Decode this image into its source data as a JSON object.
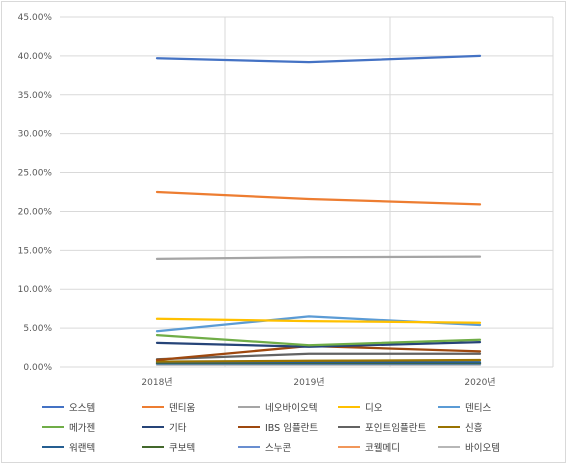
{
  "chart_data": {
    "type": "line",
    "categories": [
      "2018년",
      "2019년",
      "2020년"
    ],
    "ylim": [
      0,
      45
    ],
    "yticks": [
      "0.00%",
      "5.00%",
      "10.00%",
      "15.00%",
      "20.00%",
      "25.00%",
      "30.00%",
      "35.00%",
      "40.00%",
      "45.00%"
    ],
    "grid": true,
    "legend_position": "bottom",
    "series": [
      {
        "name": "오스템",
        "color": "#4472C4",
        "values": [
          39.7,
          39.2,
          40.0
        ]
      },
      {
        "name": "덴티움",
        "color": "#ED7D31",
        "values": [
          22.5,
          21.6,
          20.9
        ]
      },
      {
        "name": "네오바이오텍",
        "color": "#A5A5A5",
        "values": [
          13.9,
          14.1,
          14.2
        ]
      },
      {
        "name": "디오",
        "color": "#FFC000",
        "values": [
          6.2,
          5.9,
          5.7
        ]
      },
      {
        "name": "덴티스",
        "color": "#5B9BD5",
        "values": [
          4.6,
          6.5,
          5.4
        ]
      },
      {
        "name": "메가젠",
        "color": "#70AD47",
        "values": [
          4.1,
          2.8,
          3.5
        ]
      },
      {
        "name": "기타",
        "color": "#264478",
        "values": [
          3.1,
          2.6,
          3.2
        ]
      },
      {
        "name": "IBS 임플란트",
        "color": "#9E480E",
        "values": [
          0.9,
          2.7,
          2.0
        ]
      },
      {
        "name": "포인트임플란트",
        "color": "#636363",
        "values": [
          1.0,
          1.7,
          1.7
        ]
      },
      {
        "name": "신흥",
        "color": "#997300",
        "values": [
          0.7,
          0.8,
          0.9
        ]
      },
      {
        "name": "워랜텍",
        "color": "#255E91",
        "values": [
          0.6,
          0.6,
          0.6
        ]
      },
      {
        "name": "쿠보텍",
        "color": "#43682B",
        "values": [
          0.5,
          0.5,
          0.5
        ]
      },
      {
        "name": "스누콘",
        "color": "#698ED0",
        "values": [
          0.4,
          0.4,
          0.4
        ]
      },
      {
        "name": "코웰메디",
        "color": "#F1975A",
        "values": [
          0.7,
          0.5,
          0.5
        ]
      },
      {
        "name": "바이오템",
        "color": "#B7B7B7",
        "values": [
          0.3,
          0.3,
          0.3
        ]
      }
    ]
  }
}
